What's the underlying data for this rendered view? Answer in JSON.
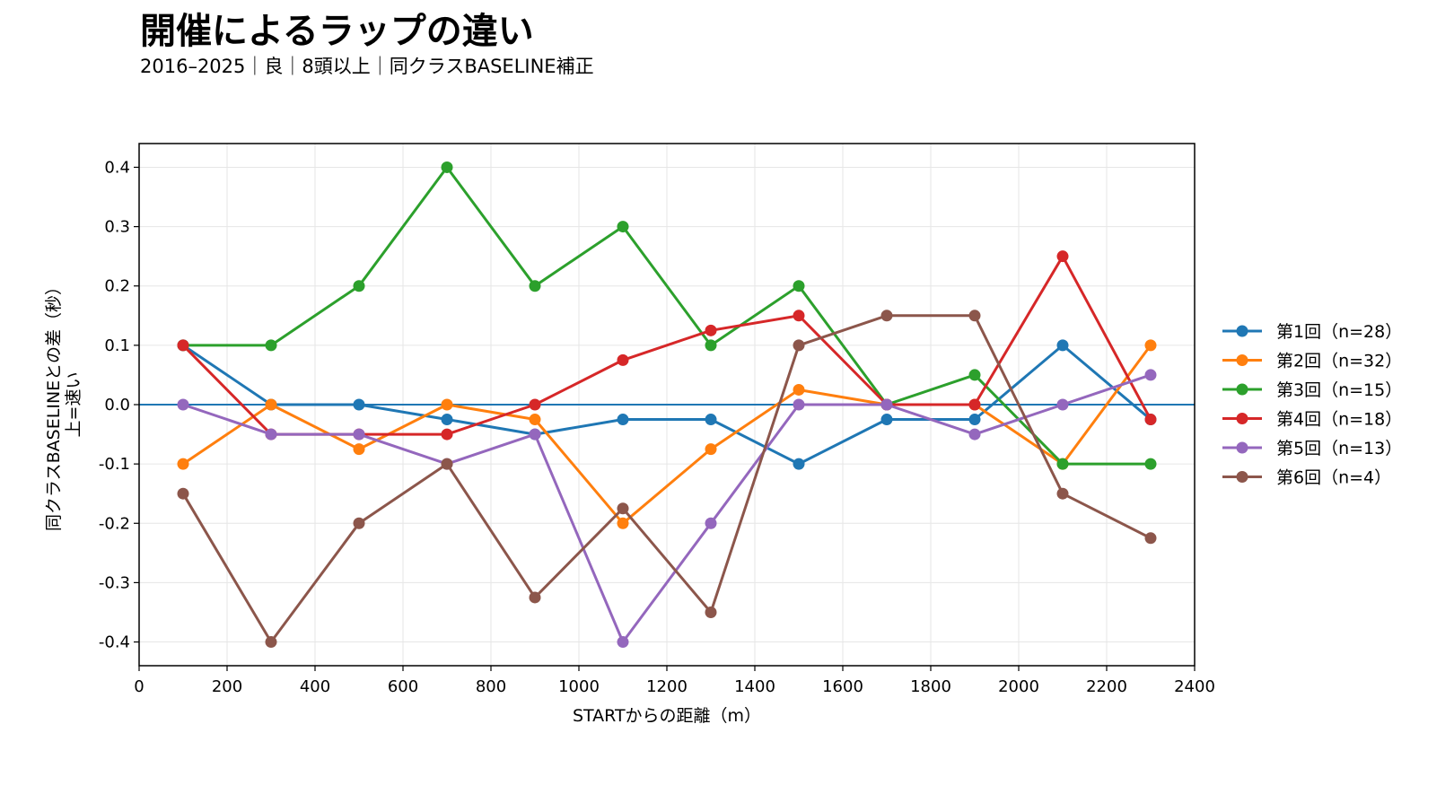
{
  "header": {
    "title": "開催によるラップの違い",
    "subtitle": "2016–2025｜良｜8頭以上｜同クラスBASELINE補正"
  },
  "chart_data": {
    "type": "line",
    "xlabel": "STARTからの距離（m）",
    "ylabel_lines": [
      "同クラスBASELINEとの差（秒）",
      "上=速い"
    ],
    "xlim": [
      0,
      2400
    ],
    "ylim": [
      -0.44,
      0.44
    ],
    "xticks": [
      0,
      200,
      400,
      600,
      800,
      1000,
      1200,
      1400,
      1600,
      1800,
      2000,
      2200,
      2400
    ],
    "yticks": [
      0.4,
      0.3,
      0.2,
      0.1,
      0.0,
      -0.1,
      -0.2,
      -0.3,
      -0.4
    ],
    "ytick_labels": [
      "0.4",
      "0.3",
      "0.2",
      "0.1",
      "0.0",
      "-0.1",
      "-0.2",
      "-0.3",
      "-0.4"
    ],
    "grid": true,
    "reference_line": 0,
    "legend_position": "right",
    "x": [
      100,
      300,
      500,
      700,
      900,
      1100,
      1300,
      1500,
      1700,
      1900,
      2100,
      2300
    ],
    "series": [
      {
        "name": "第1回（n=28）",
        "color": "#1f77b4",
        "values": [
          0.1,
          0.0,
          0.0,
          -0.025,
          -0.05,
          -0.025,
          -0.025,
          -0.1,
          -0.025,
          -0.025,
          0.1,
          -0.025
        ]
      },
      {
        "name": "第2回（n=32）",
        "color": "#ff7f0e",
        "values": [
          -0.1,
          0.0,
          -0.075,
          0.0,
          -0.025,
          -0.2,
          -0.075,
          0.025,
          0.0,
          0.0,
          -0.1,
          0.1
        ]
      },
      {
        "name": "第3回（n=15）",
        "color": "#2ca02c",
        "values": [
          0.1,
          0.1,
          0.2,
          0.4,
          0.2,
          0.3,
          0.1,
          0.2,
          0.0,
          0.05,
          -0.1,
          -0.1
        ]
      },
      {
        "name": "第4回（n=18）",
        "color": "#d62728",
        "values": [
          0.1,
          -0.05,
          -0.05,
          -0.05,
          0.0,
          0.075,
          0.125,
          0.15,
          0.0,
          0.0,
          0.25,
          -0.025
        ]
      },
      {
        "name": "第5回（n=13）",
        "color": "#9467bd",
        "values": [
          0.0,
          -0.05,
          -0.05,
          -0.1,
          -0.05,
          -0.4,
          -0.2,
          0.0,
          0.0,
          -0.05,
          0.0,
          0.05
        ]
      },
      {
        "name": "第6回（n=4）",
        "color": "#8c564b",
        "values": [
          -0.15,
          -0.4,
          -0.2,
          -0.1,
          -0.325,
          -0.175,
          -0.35,
          0.1,
          0.15,
          0.15,
          -0.15,
          -0.225
        ]
      }
    ]
  }
}
